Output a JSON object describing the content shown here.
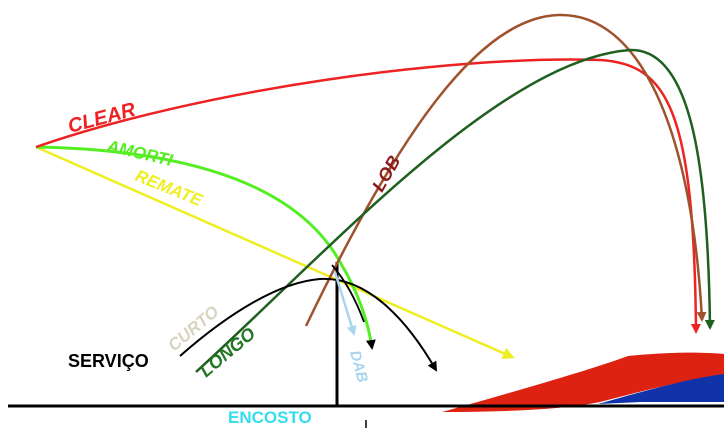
{
  "labels": {
    "clear": "CLEAR",
    "amorti": "AMORTI",
    "remate": "REMATE",
    "lob": "LOB",
    "curto": "CURTO",
    "longo": "LONGO",
    "servico": "SERVIÇO",
    "dab": "DAB",
    "encosto": "ENCOSTO"
  },
  "colors": {
    "clear": "#ee2222",
    "amorti": "#55ee22",
    "remate": "#eeee22",
    "lob": "#a0522d",
    "lob_label": "#8b1a1a",
    "longo": "#1f5f1f",
    "longo_label": "#227722",
    "curto": "#d8d4c0",
    "servico": "#000000",
    "dab": "#aad4f0",
    "encosto": "#33ddee",
    "ground": "#000000",
    "shoe_red": "#dd2211",
    "shoe_blue": "#1133aa"
  },
  "icons": {
    "shoe": "badminton-shoe-icon"
  }
}
